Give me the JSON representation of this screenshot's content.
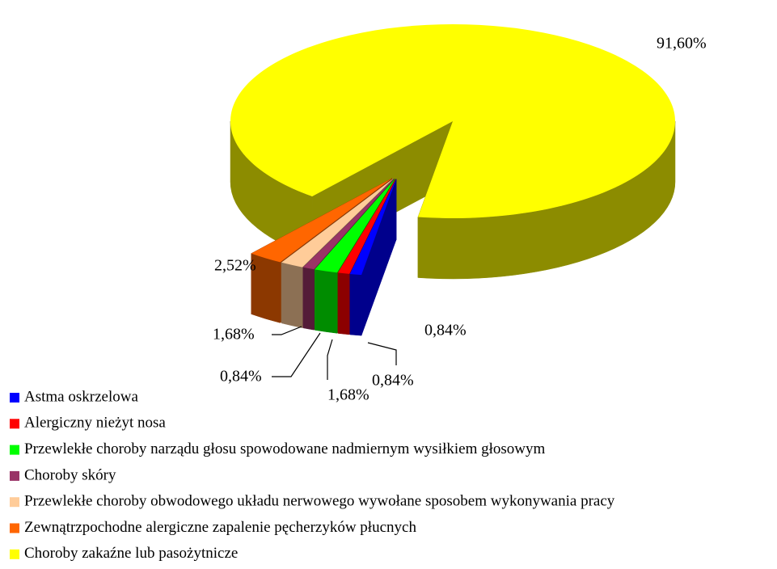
{
  "chart_data": {
    "type": "pie3d",
    "categories": [
      "Astma oskrzelowa",
      "Alergiczny nieżyt nosa",
      "Przewlekłe choroby narządu głosu spowodowane nadmiernym wysiłkiem głosowym",
      "Choroby skóry",
      "Przewlekłe choroby obwodowego układu nerwowego wywołane sposobem wykonywania pracy",
      "Zewnątrzpochodne alergiczne zapalenie pęcherzyków płucnych",
      "Choroby zakaźne lub pasożytnicze"
    ],
    "values": [
      0.84,
      0.84,
      1.68,
      0.84,
      1.68,
      2.52,
      91.6
    ],
    "value_labels": [
      "0,84%",
      "0,84%",
      "1,68%",
      "0,84%",
      "1,68%",
      "2,52%",
      "91,60%"
    ],
    "colors": [
      "#0000ff",
      "#ff0000",
      "#00ff00",
      "#993366",
      "#ffcc99",
      "#ff6600",
      "#ffff00"
    ],
    "legend": "bottom-left"
  }
}
